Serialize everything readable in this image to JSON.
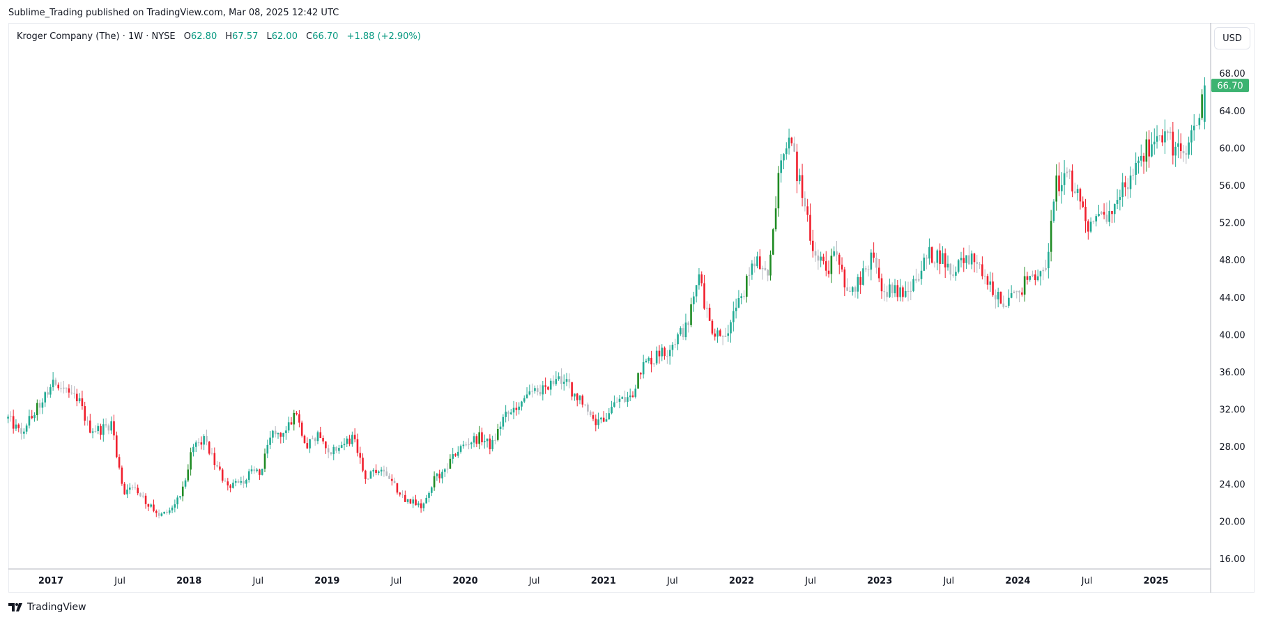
{
  "header": {
    "published": "Sublime_Trading published on TradingView.com, Mar 08, 2025 12:42 UTC"
  },
  "legend": {
    "symbol": "Kroger Company (The) · 1W · NYSE",
    "o_label": "O",
    "o": "62.80",
    "h_label": "H",
    "h": "67.57",
    "l_label": "L",
    "l": "62.00",
    "c_label": "C",
    "c": "66.70",
    "change": "+1.88 (+2.90%)"
  },
  "currency_button": "USD",
  "last_price_label": "66.70",
  "footer": {
    "brand": "TradingView"
  },
  "colors": {
    "up": "#22ab94",
    "up_strong": "#1f8b24",
    "down": "#f0202e",
    "neutral": "#b7b9c0",
    "last": "#3cb371"
  },
  "chart_data": {
    "type": "candlestick",
    "title": "Kroger Company (The) · 1W · NYSE",
    "interval": "weekly",
    "ylim": [
      14,
      70
    ],
    "y_ticks": [
      "16.00",
      "20.00",
      "24.00",
      "28.00",
      "32.00",
      "36.00",
      "40.00",
      "44.00",
      "48.00",
      "52.00",
      "56.00",
      "60.00",
      "64.00",
      "68.00"
    ],
    "x_ticks": [
      {
        "label": "2017",
        "t": 2017.0,
        "bold": true
      },
      {
        "label": "Jul",
        "t": 2017.5
      },
      {
        "label": "2018",
        "t": 2018.0,
        "bold": true
      },
      {
        "label": "Jul",
        "t": 2018.5
      },
      {
        "label": "2019",
        "t": 2019.0,
        "bold": true
      },
      {
        "label": "Jul",
        "t": 2019.5
      },
      {
        "label": "2020",
        "t": 2020.0,
        "bold": true
      },
      {
        "label": "Jul",
        "t": 2020.5
      },
      {
        "label": "2021",
        "t": 2021.0,
        "bold": true
      },
      {
        "label": "Jul",
        "t": 2021.5
      },
      {
        "label": "2022",
        "t": 2022.0,
        "bold": true
      },
      {
        "label": "Jul",
        "t": 2022.5
      },
      {
        "label": "2023",
        "t": 2023.0,
        "bold": true
      },
      {
        "label": "Jul",
        "t": 2023.5
      },
      {
        "label": "2024",
        "t": 2024.0,
        "bold": true
      },
      {
        "label": "Jul",
        "t": 2024.5
      },
      {
        "label": "2025",
        "t": 2025.0,
        "bold": true
      }
    ],
    "start": 2016.69,
    "monthly_close": [
      31,
      29.5,
      31,
      33,
      35.5,
      34,
      33.5,
      30,
      29.8,
      30.5,
      23,
      24,
      22,
      20.5,
      21,
      23,
      27.5,
      29,
      26,
      24,
      24,
      25,
      25.5,
      29.5,
      29.5,
      31.5,
      28,
      29.5,
      27.5,
      28,
      29,
      24.5,
      25.5,
      25,
      23,
      22,
      21.5,
      24.5,
      25.5,
      27.5,
      28.5,
      29,
      28,
      31,
      32,
      33.5,
      34,
      34.5,
      35.5,
      34,
      32.5,
      30.5,
      31.5,
      33,
      33,
      36.5,
      37.5,
      38,
      39.5,
      41,
      46,
      41,
      39.5,
      42,
      45,
      48,
      45.5,
      58,
      60.5,
      55,
      49,
      47,
      48.5,
      44.5,
      46,
      48,
      45,
      44.5,
      44,
      46.5,
      48.5,
      48.5,
      46.5,
      48.5,
      47.5,
      45.5,
      44,
      43.5,
      45,
      46.5,
      46,
      56,
      57,
      55,
      51,
      52.5,
      53,
      56,
      57.5,
      60,
      62,
      60.5,
      59,
      61.5,
      66.7
    ],
    "last_candle": {
      "open": 62.8,
      "high": 67.57,
      "low": 62.0,
      "close": 66.7
    }
  }
}
